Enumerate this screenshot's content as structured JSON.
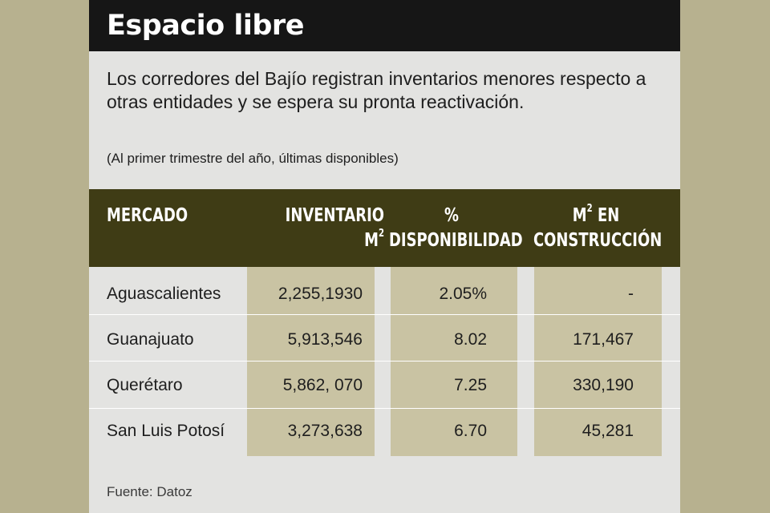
{
  "title": "Espacio libre",
  "subtitle": "Los corredores del Bajío registran inventarios menores respecto a otras entidades y se espera su pronta reactivación.",
  "note": "(Al primer trimestre del año, últimas disponibles)",
  "table": {
    "headers": {
      "market": "MERCADO",
      "inventory_line1": "INVENTARIO",
      "inventory_line2": "M",
      "inventory_sup": "2",
      "availability_line1": "%",
      "availability_line2": "DISPONIBILIDAD",
      "construction_prefix": "M",
      "construction_sup": "2",
      "construction_suffix": " EN",
      "construction_line2": "CONSTRUCCIÓN"
    },
    "rows": [
      {
        "market": "Aguascalientes",
        "inventory": "2,255,1930",
        "availability": "2.05%",
        "construction": "-"
      },
      {
        "market": "Guanajuato",
        "inventory": "5,913,546",
        "availability": "8.02",
        "construction": "171,467"
      },
      {
        "market": "Querétaro",
        "inventory": "5,862, 070",
        "availability": "7.25",
        "construction": "330,190"
      },
      {
        "market": "San Luis Potosí",
        "inventory": "3,273,638",
        "availability": "6.70",
        "construction": "45,281"
      }
    ]
  },
  "source": "Fuente: Datoz",
  "colors": {
    "background": "#b7b18f",
    "card": "#e3e3e1",
    "title_bar": "#161616",
    "table_header": "#3f3c15",
    "column_fill": "#c9c3a3"
  }
}
